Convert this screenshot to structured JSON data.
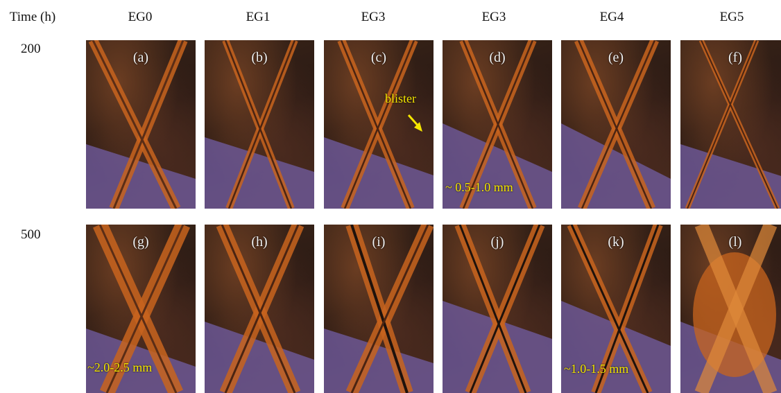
{
  "header": {
    "time_label": "Time (h)",
    "columns": [
      "EG0",
      "EG1",
      "EG3",
      "EG3",
      "EG4",
      "EG5"
    ]
  },
  "rows": [
    {
      "time": "200",
      "panels": [
        "(a)",
        "(b)",
        "(c)",
        "(d)",
        "(e)",
        "(f)"
      ]
    },
    {
      "time": "500",
      "panels": [
        "(g)",
        "(h)",
        "(i)",
        "(j)",
        "(k)",
        "(l)"
      ]
    }
  ],
  "annotations": {
    "blister": "blister",
    "width_d": "~ 0.5-1.0 mm",
    "width_g": "~2.0-2.5 mm",
    "width_k": "~1.0-1.5 mm"
  },
  "colors": {
    "annotation_yellow": "#f5e600",
    "rust_orange": "#c8641e",
    "ruler_purple": "#6e5a9c"
  }
}
